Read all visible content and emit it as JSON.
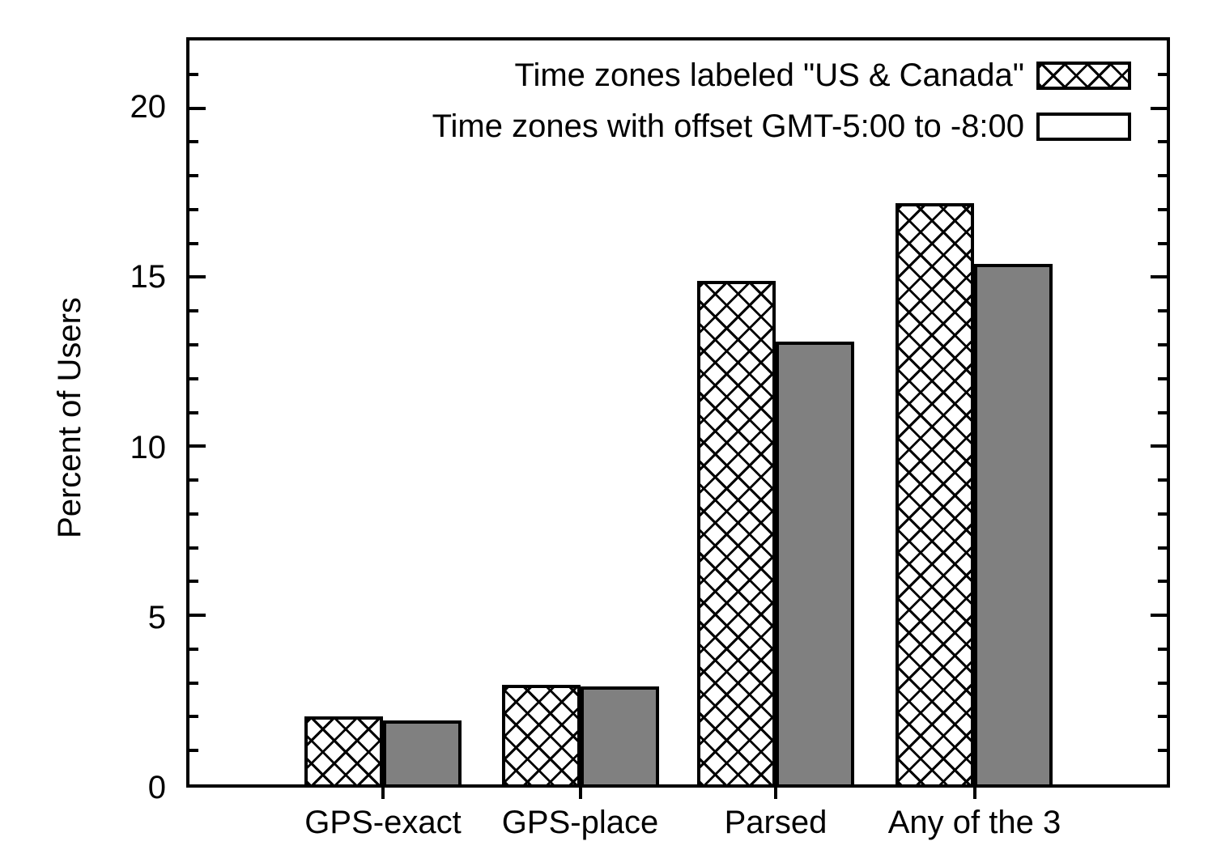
{
  "chart_data": {
    "type": "bar",
    "title": "",
    "xlabel": "",
    "ylabel": "Percent of Users",
    "categories": [
      "GPS-exact",
      "GPS-place",
      "Parsed",
      "Any of the 3"
    ],
    "series": [
      {
        "name": "Time zones labeled \"US & Canada\"",
        "style": "crosshatch",
        "values": [
          2.0,
          2.95,
          14.9,
          17.2
        ]
      },
      {
        "name": "Time zones with offset GMT-5:00 to -8:00",
        "style": "solid-gray",
        "values": [
          1.9,
          2.9,
          13.1,
          15.4
        ]
      }
    ],
    "ylim": [
      0,
      22
    ],
    "yticks_major": [
      0,
      5,
      10,
      15,
      20
    ],
    "ytick_minor_step": 1,
    "grid": false,
    "legend_position": "top-right-inside",
    "colors": {
      "hatch_line": "#000000",
      "hatch_bg": "#ffffff",
      "solid_fill": "#808080",
      "frame": "#000000",
      "text": "#000000",
      "background": "#ffffff"
    }
  }
}
